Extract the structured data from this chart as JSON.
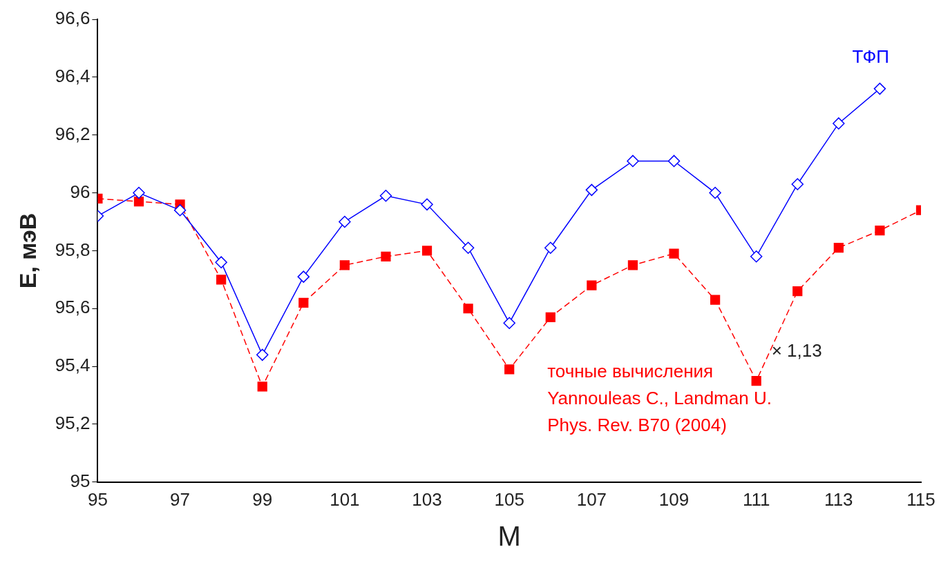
{
  "chart_data": {
    "type": "line",
    "xlabel": "M",
    "ylabel": "E, мэВ",
    "xlim": [
      95,
      115
    ],
    "xticks": [
      95,
      97,
      99,
      101,
      103,
      105,
      107,
      109,
      111,
      113,
      115
    ],
    "ylim": [
      95,
      96.6
    ],
    "yticks": [
      95,
      {
        "value": 95.2,
        "label": "95,2"
      },
      {
        "value": 95.4,
        "label": "95,4"
      },
      {
        "value": 95.6,
        "label": "95,6"
      },
      {
        "value": 95.8,
        "label": "95,8"
      },
      96,
      {
        "value": 96.2,
        "label": "96,2"
      },
      {
        "value": 96.4,
        "label": "96,4"
      },
      {
        "value": 96.6,
        "label": "96,6"
      }
    ],
    "grid": false,
    "legend": false,
    "series": [
      {
        "name": "ТФП",
        "color": "#0000ff",
        "marker": "diamond",
        "line_style": "solid",
        "x": [
          95,
          96,
          97,
          98,
          99,
          100,
          101,
          102,
          103,
          104,
          105,
          106,
          107,
          108,
          109,
          110,
          111,
          112,
          113,
          114
        ],
        "values": [
          95.92,
          96.0,
          95.94,
          95.76,
          95.44,
          95.71,
          95.9,
          95.99,
          95.96,
          95.81,
          95.55,
          95.81,
          96.01,
          96.11,
          96.11,
          96.0,
          95.78,
          96.03,
          96.24,
          96.36
        ]
      },
      {
        "name": "точные вычисления\nYannouleas C., Landman U.\nPhys. Rev. B70 (2004)",
        "color": "#ff0000",
        "marker": "square",
        "line_style": "dashed",
        "x": [
          95,
          96,
          97,
          98,
          99,
          100,
          101,
          102,
          103,
          104,
          105,
          106,
          107,
          108,
          109,
          110,
          111,
          112,
          113,
          114,
          115
        ],
        "values": [
          95.98,
          95.97,
          95.96,
          95.7,
          95.33,
          95.62,
          95.75,
          95.78,
          95.8,
          95.6,
          95.39,
          95.57,
          95.68,
          95.75,
          95.79,
          95.63,
          95.35,
          95.66,
          95.81,
          95.87,
          95.94
        ]
      }
    ],
    "annotations": [
      {
        "text": "× 1,13",
        "x": 111,
        "y": 95.35
      }
    ]
  }
}
